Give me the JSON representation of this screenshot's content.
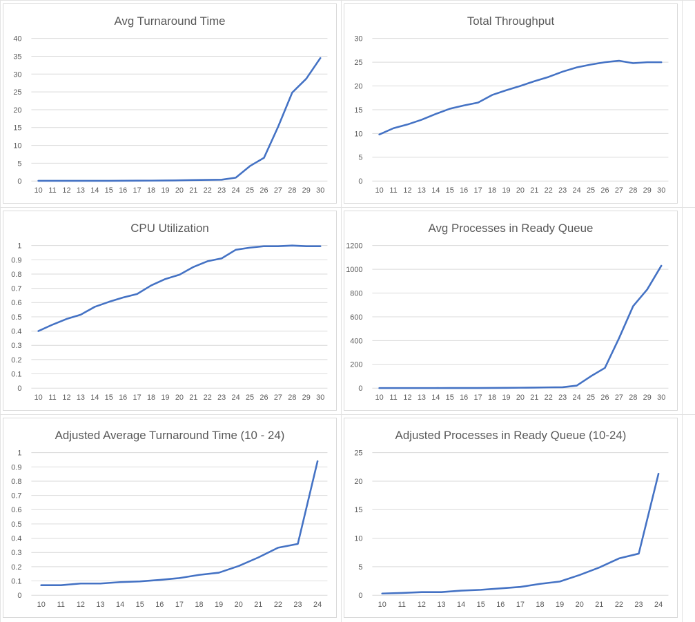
{
  "series_color": "#4472c4",
  "chart_data": [
    {
      "type": "line",
      "title": "Avg Turnaround Time",
      "categories": [
        "10",
        "11",
        "12",
        "13",
        "14",
        "15",
        "16",
        "17",
        "18",
        "19",
        "20",
        "21",
        "22",
        "23",
        "24",
        "25",
        "26",
        "27",
        "28",
        "29",
        "30"
      ],
      "series": [
        {
          "values": [
            0.05,
            0.05,
            0.05,
            0.05,
            0.05,
            0.05,
            0.08,
            0.1,
            0.12,
            0.15,
            0.2,
            0.26,
            0.33,
            0.36,
            0.94,
            4.2,
            6.5,
            15.2,
            24.8,
            28.7,
            34.5
          ]
        }
      ],
      "ylim": [
        0,
        40
      ],
      "yticks": [
        0,
        5,
        10,
        15,
        20,
        25,
        30,
        35,
        40
      ],
      "grid": true,
      "xlabel": "",
      "ylabel": ""
    },
    {
      "type": "line",
      "title": "Total Throughput",
      "categories": [
        "10",
        "11",
        "12",
        "13",
        "14",
        "15",
        "16",
        "17",
        "18",
        "19",
        "20",
        "21",
        "22",
        "23",
        "24",
        "25",
        "26",
        "27",
        "28",
        "29",
        "30"
      ],
      "series": [
        {
          "values": [
            9.8,
            11.1,
            11.9,
            12.9,
            14.1,
            15.2,
            15.9,
            16.5,
            18.1,
            19.1,
            20.0,
            21.0,
            21.9,
            23.0,
            23.9,
            24.5,
            25.0,
            25.3,
            24.8,
            25.0,
            25.0
          ]
        }
      ],
      "ylim": [
        0,
        30
      ],
      "yticks": [
        0,
        5,
        10,
        15,
        20,
        25,
        30
      ],
      "grid": true,
      "xlabel": "",
      "ylabel": ""
    },
    {
      "type": "line",
      "title": "CPU Utilization",
      "categories": [
        "10",
        "11",
        "12",
        "13",
        "14",
        "15",
        "16",
        "17",
        "18",
        "19",
        "20",
        "21",
        "22",
        "23",
        "24",
        "25",
        "26",
        "27",
        "28",
        "29",
        "30"
      ],
      "series": [
        {
          "values": [
            0.4,
            0.445,
            0.485,
            0.515,
            0.57,
            0.605,
            0.635,
            0.66,
            0.72,
            0.765,
            0.795,
            0.85,
            0.89,
            0.91,
            0.97,
            0.985,
            0.995,
            0.995,
            1.0,
            0.995,
            0.995
          ]
        }
      ],
      "ylim": [
        0,
        1
      ],
      "yticks": [
        0,
        0.1,
        0.2,
        0.3,
        0.4,
        0.5,
        0.6,
        0.7,
        0.8,
        0.9,
        1
      ],
      "grid": true,
      "xlabel": "",
      "ylabel": ""
    },
    {
      "type": "line",
      "title": "Avg Processes in Ready Queue",
      "categories": [
        "10",
        "11",
        "12",
        "13",
        "14",
        "15",
        "16",
        "17",
        "18",
        "19",
        "20",
        "21",
        "22",
        "23",
        "24",
        "25",
        "26",
        "27",
        "28",
        "29",
        "30"
      ],
      "series": [
        {
          "values": [
            0.3,
            0.4,
            0.5,
            0.6,
            0.8,
            0.9,
            1.1,
            1.4,
            2.0,
            2.4,
            3.5,
            4.8,
            6.4,
            7.3,
            21.3,
            100,
            170,
            420,
            690,
            830,
            1030
          ]
        }
      ],
      "ylim": [
        0,
        1200
      ],
      "yticks": [
        0,
        200,
        400,
        600,
        800,
        1000,
        1200
      ],
      "grid": true,
      "xlabel": "",
      "ylabel": ""
    },
    {
      "type": "line",
      "title": "Adjusted Average Turnaround Time (10 - 24)",
      "categories": [
        "10",
        "11",
        "12",
        "13",
        "14",
        "15",
        "16",
        "17",
        "18",
        "19",
        "20",
        "21",
        "22",
        "23",
        "24"
      ],
      "series": [
        {
          "values": [
            0.07,
            0.07,
            0.082,
            0.082,
            0.092,
            0.097,
            0.107,
            0.12,
            0.143,
            0.158,
            0.205,
            0.265,
            0.333,
            0.36,
            0.94
          ]
        }
      ],
      "ylim": [
        0,
        1
      ],
      "yticks": [
        0,
        0.1,
        0.2,
        0.3,
        0.4,
        0.5,
        0.6,
        0.7,
        0.8,
        0.9,
        1
      ],
      "grid": true,
      "xlabel": "",
      "ylabel": ""
    },
    {
      "type": "line",
      "title": "Adjusted Processes in Ready Queue (10-24)",
      "categories": [
        "10",
        "11",
        "12",
        "13",
        "14",
        "15",
        "16",
        "17",
        "18",
        "19",
        "20",
        "21",
        "22",
        "23",
        "24"
      ],
      "series": [
        {
          "values": [
            0.3,
            0.4,
            0.55,
            0.55,
            0.8,
            0.95,
            1.2,
            1.45,
            2.0,
            2.4,
            3.55,
            4.85,
            6.45,
            7.3,
            21.3
          ]
        }
      ],
      "ylim": [
        0,
        25
      ],
      "yticks": [
        0,
        5,
        10,
        15,
        20,
        25
      ],
      "grid": true,
      "xlabel": "",
      "ylabel": ""
    }
  ]
}
